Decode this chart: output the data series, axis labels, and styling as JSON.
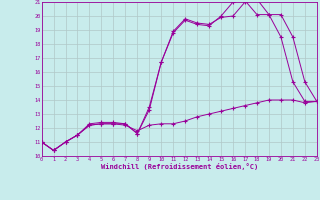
{
  "xlabel": "Windchill (Refroidissement éolien,°C)",
  "bg_color": "#c8ecec",
  "line_color": "#990099",
  "grid_color": "#b0c8c8",
  "xlim": [
    0,
    23
  ],
  "ylim": [
    10,
    21
  ],
  "xticks": [
    0,
    1,
    2,
    3,
    4,
    5,
    6,
    7,
    8,
    9,
    10,
    11,
    12,
    13,
    14,
    15,
    16,
    17,
    18,
    19,
    20,
    21,
    22,
    23
  ],
  "yticks": [
    10,
    11,
    12,
    13,
    14,
    15,
    16,
    17,
    18,
    19,
    20,
    21
  ],
  "series": [
    {
      "x": [
        0,
        1,
        2,
        3,
        4,
        5,
        6,
        7,
        8,
        9,
        10,
        11,
        12,
        13,
        14,
        15,
        16,
        17,
        18,
        19,
        20,
        21,
        22,
        23
      ],
      "y": [
        11,
        10.4,
        11,
        11.5,
        12.2,
        12.3,
        12.3,
        12.2,
        11.8,
        12.2,
        12.3,
        12.3,
        12.5,
        12.8,
        13.0,
        13.2,
        13.4,
        13.6,
        13.8,
        14.0,
        14.0,
        14.0,
        13.8,
        13.9
      ]
    },
    {
      "x": [
        0,
        1,
        2,
        3,
        4,
        5,
        6,
        7,
        8,
        9,
        10,
        11,
        12,
        13,
        14,
        15,
        16,
        17,
        18,
        19,
        20,
        21,
        22,
        23
      ],
      "y": [
        11,
        10.4,
        11,
        11.5,
        12.3,
        12.4,
        12.4,
        12.3,
        11.6,
        13.5,
        16.7,
        18.8,
        19.7,
        19.4,
        19.3,
        20.0,
        21.0,
        21.1,
        20.1,
        20.1,
        18.5,
        15.3,
        13.9,
        13.9
      ]
    },
    {
      "x": [
        0,
        1,
        2,
        3,
        4,
        5,
        6,
        7,
        8,
        9,
        10,
        11,
        12,
        13,
        14,
        15,
        16,
        17,
        18,
        19,
        20,
        21,
        22,
        23
      ],
      "y": [
        11,
        10.4,
        11,
        11.5,
        12.2,
        12.3,
        12.3,
        12.3,
        11.6,
        13.3,
        16.7,
        18.9,
        19.8,
        19.5,
        19.4,
        19.9,
        20.0,
        21.0,
        21.2,
        20.1,
        20.1,
        18.5,
        15.3,
        13.9
      ]
    }
  ]
}
